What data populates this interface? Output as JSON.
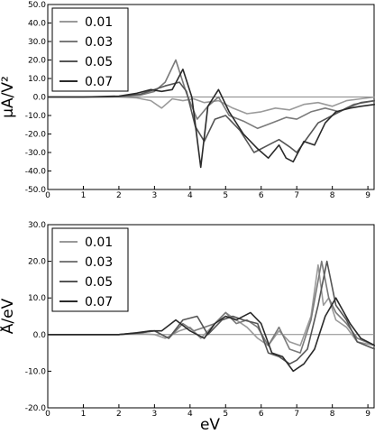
{
  "figure": {
    "xlabel": "eV"
  },
  "chart_data": [
    {
      "type": "line",
      "ylabel": "μA/V²",
      "xlim": [
        0,
        9.2
      ],
      "ylim": [
        -50,
        50
      ],
      "x_ticks": [
        0,
        1,
        2,
        3,
        4,
        5,
        6,
        7,
        8,
        9
      ],
      "y_ticks": [
        50,
        40,
        30,
        20,
        10,
        0,
        -10,
        -20,
        -30,
        -40,
        -50
      ],
      "x_tick_labels": [
        "0",
        "1",
        "2",
        "3",
        "4",
        "5",
        "6",
        "7",
        "8",
        "9"
      ],
      "y_tick_labels": [
        "50.0",
        "40.0",
        "30.0",
        "20.0",
        "10.0",
        "0.0",
        "-10.0",
        "-20.0",
        "-30.0",
        "-40.0",
        "-50.0"
      ],
      "zero_line": true,
      "grid": false,
      "legend_position": "top-left",
      "series": [
        {
          "name": "0.01",
          "color": "#9a9a9a",
          "x": [
            0,
            1,
            2,
            2.5,
            2.9,
            3.2,
            3.5,
            3.8,
            4.1,
            4.4,
            4.8,
            5.2,
            5.6,
            6.0,
            6.4,
            6.8,
            7.2,
            7.6,
            8.0,
            8.4,
            8.8,
            9.2
          ],
          "y": [
            0,
            0,
            0,
            -0.5,
            -2,
            -6,
            -1,
            -2,
            -1,
            -3,
            -2,
            -6,
            -9,
            -8,
            -6,
            -7,
            -4,
            -3,
            -5,
            -2,
            -1,
            0
          ]
        },
        {
          "name": "0.03",
          "color": "#7a7a7a",
          "x": [
            0,
            1,
            2,
            2.6,
            3.0,
            3.3,
            3.6,
            3.9,
            4.2,
            4.5,
            4.8,
            5.1,
            5.5,
            5.9,
            6.3,
            6.7,
            7.0,
            7.4,
            7.8,
            8.2,
            8.6,
            9.2
          ],
          "y": [
            0,
            0,
            0.2,
            1,
            3,
            8,
            20,
            2,
            -12,
            -5,
            0,
            -10,
            -13,
            -17,
            -14,
            -11,
            -12,
            -8,
            -6,
            -8,
            -4,
            -2
          ]
        },
        {
          "name": "0.05",
          "color": "#555555",
          "x": [
            0,
            1,
            2,
            2.6,
            3.0,
            3.3,
            3.7,
            3.9,
            4.15,
            4.4,
            4.7,
            5.0,
            5.4,
            5.8,
            6.2,
            6.5,
            6.8,
            7.0,
            7.3,
            7.6,
            8.0,
            8.4,
            8.8,
            9.2
          ],
          "y": [
            0,
            0,
            0.2,
            1.5,
            4,
            6,
            8,
            3,
            -16,
            -24,
            -12,
            -10,
            -18,
            -30,
            -26,
            -23,
            -27,
            -30,
            -22,
            -14,
            -10,
            -6,
            -3,
            -2
          ]
        },
        {
          "name": "0.07",
          "color": "#2a2a2a",
          "x": [
            0,
            1,
            2,
            2.5,
            2.9,
            3.2,
            3.5,
            3.8,
            4.05,
            4.3,
            4.5,
            4.8,
            5.1,
            5.5,
            5.9,
            6.2,
            6.5,
            6.7,
            6.9,
            7.2,
            7.5,
            7.8,
            8.1,
            8.5,
            8.8,
            9.2
          ],
          "y": [
            0,
            0,
            0.5,
            2,
            4,
            3,
            4,
            15,
            0,
            -38,
            -5,
            4,
            -8,
            -20,
            -28,
            -33,
            -26,
            -33,
            -35,
            -24,
            -26,
            -14,
            -8,
            -6,
            -5,
            -4
          ]
        }
      ]
    },
    {
      "type": "line",
      "ylabel": "Å/eV",
      "xlim": [
        0,
        9.2
      ],
      "ylim": [
        -20,
        30
      ],
      "x_ticks": [
        0,
        1,
        2,
        3,
        4,
        5,
        6,
        7,
        8,
        9
      ],
      "y_ticks": [
        30,
        20,
        10,
        0,
        -10,
        -20
      ],
      "x_tick_labels": [
        "0",
        "1",
        "2",
        "3",
        "4",
        "5",
        "6",
        "7",
        "8",
        "9"
      ],
      "y_tick_labels": [
        "30.0",
        "20.0",
        "10.0",
        "0.0",
        "-10.0",
        "-20.0"
      ],
      "zero_line": true,
      "grid": false,
      "legend_position": "top-left",
      "series": [
        {
          "name": "0.01",
          "color": "#9a9a9a",
          "x": [
            0,
            1,
            2,
            2.5,
            3.0,
            3.3,
            3.7,
            4.0,
            4.3,
            4.6,
            5.0,
            5.3,
            5.6,
            5.9,
            6.2,
            6.5,
            6.8,
            7.1,
            7.4,
            7.6,
            7.75,
            7.9,
            8.1,
            8.4,
            8.7,
            9.2
          ],
          "y": [
            0,
            0,
            0,
            0.3,
            0,
            -1,
            1,
            2,
            -1,
            2,
            6,
            4,
            2,
            -1,
            -3,
            1,
            -2,
            -3,
            5,
            19,
            8,
            10,
            4,
            2,
            -2,
            -3
          ]
        },
        {
          "name": "0.03",
          "color": "#7a7a7a",
          "x": [
            0,
            1,
            2,
            2.6,
            3.0,
            3.4,
            3.8,
            4.1,
            4.4,
            4.7,
            5.0,
            5.3,
            5.6,
            5.9,
            6.2,
            6.5,
            6.8,
            7.1,
            7.4,
            7.7,
            7.9,
            8.1,
            8.4,
            8.7,
            9.2
          ],
          "y": [
            0,
            0,
            0,
            0.5,
            1,
            -1,
            3,
            1,
            2,
            3,
            6,
            3,
            4,
            2,
            -3,
            2,
            -4,
            -5,
            4,
            20,
            10,
            6,
            3,
            -1,
            -3
          ]
        },
        {
          "name": "0.05",
          "color": "#555555",
          "x": [
            0,
            1,
            2,
            2.6,
            3.0,
            3.4,
            3.8,
            4.2,
            4.5,
            4.9,
            5.2,
            5.5,
            5.9,
            6.2,
            6.5,
            6.8,
            7.0,
            7.3,
            7.6,
            7.85,
            8.1,
            8.4,
            8.7,
            9.2
          ],
          "y": [
            0,
            0,
            0,
            0.5,
            1,
            -1,
            4,
            5,
            0,
            4,
            5,
            4,
            3,
            -5,
            -6,
            -8,
            -7,
            -4,
            8,
            20,
            8,
            4,
            -2,
            -4
          ]
        },
        {
          "name": "0.07",
          "color": "#2a2a2a",
          "x": [
            0,
            1,
            2,
            2.5,
            2.9,
            3.2,
            3.6,
            4.0,
            4.4,
            4.7,
            5.0,
            5.3,
            5.7,
            6.0,
            6.3,
            6.6,
            6.9,
            7.2,
            7.5,
            7.8,
            8.1,
            8.5,
            8.8,
            9.2
          ],
          "y": [
            0,
            0,
            0,
            0.5,
            1,
            1,
            4,
            1,
            -1,
            3,
            5,
            4,
            6,
            3,
            -5,
            -6,
            -10,
            -8,
            -4,
            5,
            10,
            3,
            -1,
            -3
          ]
        }
      ]
    }
  ]
}
